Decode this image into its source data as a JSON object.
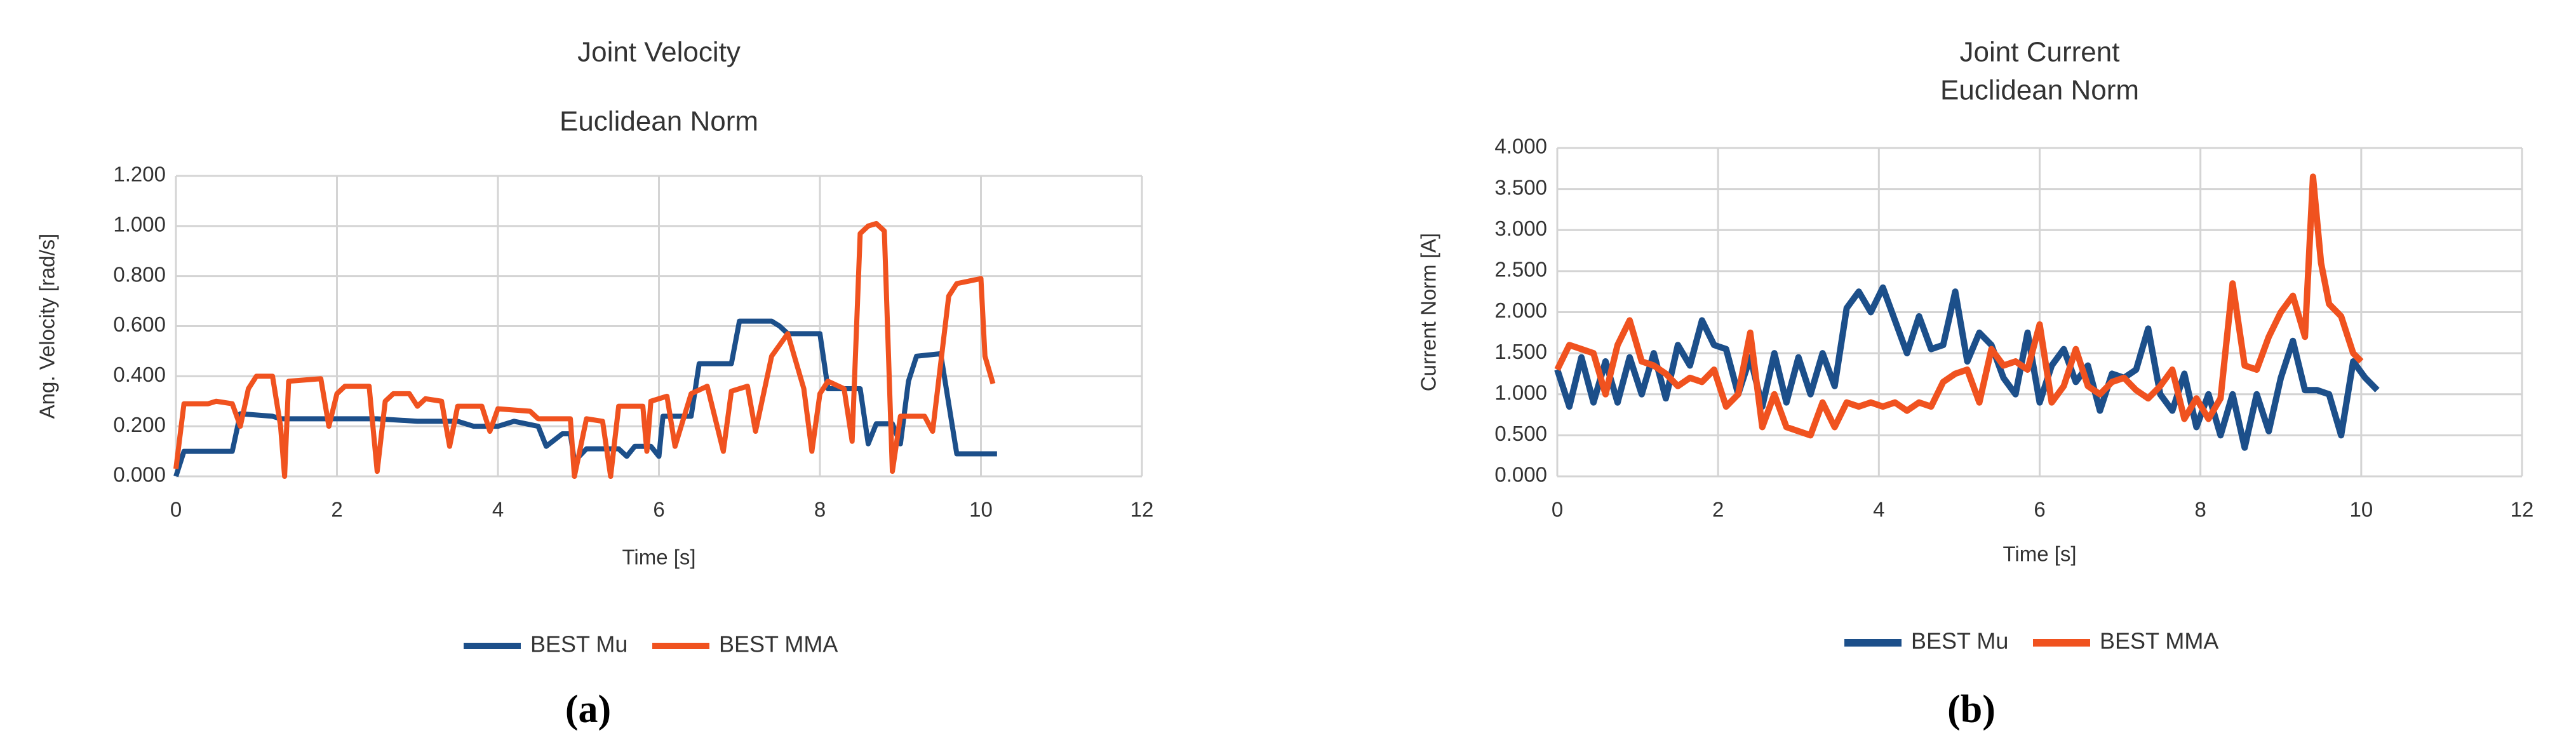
{
  "chart_data": [
    {
      "type": "line",
      "title": "Joint Velocity",
      "subtitle": "Euclidean Norm",
      "xlabel": "Time [s]",
      "ylabel": "Ang. Velocity [rad/s]",
      "panel_label": "(a)",
      "xlim": [
        0,
        12
      ],
      "xticks": [
        0,
        2,
        4,
        6,
        8,
        10,
        12
      ],
      "ylim": [
        0,
        1.2
      ],
      "yticks": [
        {
          "value": 0,
          "label": "0.000"
        },
        {
          "value": 0.2,
          "label": "0.200"
        },
        {
          "value": 0.4,
          "label": "0.400"
        },
        {
          "value": 0.6,
          "label": "0.600"
        },
        {
          "value": 0.8,
          "label": "0.800"
        },
        {
          "value": 1.0,
          "label": "1.000"
        },
        {
          "value": 1.2,
          "label": "1.200"
        }
      ],
      "grid": true,
      "legend": "bottom",
      "series": [
        {
          "name": "BEST Mu",
          "color": "#1c4f8a",
          "x": [
            0,
            0.1,
            0.7,
            0.8,
            1.2,
            1.3,
            2.5,
            3,
            3.5,
            3.7,
            4,
            4.2,
            4.5,
            4.6,
            4.8,
            4.9,
            4.95,
            5.1,
            5.5,
            5.6,
            5.7,
            5.9,
            6,
            6.05,
            6.4,
            6.5,
            6.9,
            7,
            7.4,
            7.5,
            7.6,
            8.0,
            8.1,
            8.5,
            8.6,
            8.7,
            8.9,
            9.0,
            9.1,
            9.2,
            9.5,
            9.7,
            10.2
          ],
          "values": [
            0,
            0.1,
            0.1,
            0.25,
            0.24,
            0.23,
            0.23,
            0.22,
            0.22,
            0.2,
            0.2,
            0.22,
            0.2,
            0.12,
            0.17,
            0.17,
            0.06,
            0.11,
            0.11,
            0.08,
            0.12,
            0.12,
            0.08,
            0.24,
            0.24,
            0.45,
            0.45,
            0.62,
            0.62,
            0.6,
            0.57,
            0.57,
            0.35,
            0.35,
            0.13,
            0.21,
            0.21,
            0.13,
            0.38,
            0.48,
            0.49,
            0.09,
            0.09
          ]
        },
        {
          "name": "BEST MMA",
          "color": "#f0521f",
          "x": [
            0,
            0.1,
            0.4,
            0.5,
            0.7,
            0.8,
            0.9,
            1.0,
            1.2,
            1.3,
            1.35,
            1.4,
            1.8,
            1.9,
            2,
            2.1,
            2.4,
            2.5,
            2.6,
            2.7,
            2.9,
            3.0,
            3.1,
            3.3,
            3.4,
            3.5,
            3.8,
            3.9,
            4,
            4.4,
            4.5,
            4.9,
            4.95,
            5.1,
            5.3,
            5.4,
            5.5,
            5.8,
            5.85,
            5.9,
            6.1,
            6.2,
            6.4,
            6.6,
            6.8,
            6.9,
            7.1,
            7.2,
            7.4,
            7.6,
            7.8,
            7.9,
            8.0,
            8.1,
            8.3,
            8.4,
            8.5,
            8.6,
            8.7,
            8.8,
            8.9,
            9.0,
            9.3,
            9.4,
            9.6,
            9.7,
            10.0,
            10.05,
            10.15
          ],
          "values": [
            0.03,
            0.29,
            0.29,
            0.3,
            0.29,
            0.2,
            0.35,
            0.4,
            0.4,
            0.2,
            0.0,
            0.38,
            0.39,
            0.2,
            0.33,
            0.36,
            0.36,
            0.02,
            0.3,
            0.33,
            0.33,
            0.28,
            0.31,
            0.3,
            0.12,
            0.28,
            0.28,
            0.18,
            0.27,
            0.26,
            0.23,
            0.23,
            0.0,
            0.23,
            0.22,
            0.0,
            0.28,
            0.28,
            0.1,
            0.3,
            0.32,
            0.12,
            0.33,
            0.36,
            0.1,
            0.34,
            0.36,
            0.18,
            0.48,
            0.57,
            0.35,
            0.1,
            0.33,
            0.38,
            0.35,
            0.14,
            0.97,
            1.0,
            1.01,
            0.98,
            0.02,
            0.24,
            0.24,
            0.18,
            0.72,
            0.77,
            0.79,
            0.48,
            0.37
          ]
        }
      ]
    },
    {
      "type": "line",
      "title": "Joint Current",
      "subtitle": "Euclidean Norm",
      "xlabel": "Time [s]",
      "ylabel": "Current Norm [A]",
      "panel_label": "(b)",
      "xlim": [
        0,
        12
      ],
      "xticks": [
        0,
        2,
        4,
        6,
        8,
        10,
        12
      ],
      "ylim": [
        0,
        4
      ],
      "yticks": [
        {
          "value": 0,
          "label": "0.000"
        },
        {
          "value": 0.5,
          "label": "0.500"
        },
        {
          "value": 1.0,
          "label": "1.000"
        },
        {
          "value": 1.5,
          "label": "1.500"
        },
        {
          "value": 2.0,
          "label": "2.000"
        },
        {
          "value": 2.5,
          "label": "2.500"
        },
        {
          "value": 3.0,
          "label": "3.000"
        },
        {
          "value": 3.5,
          "label": "3.500"
        },
        {
          "value": 4.0,
          "label": "4.000"
        }
      ],
      "grid": true,
      "legend": "bottom",
      "series": [
        {
          "name": "BEST Mu",
          "color": "#1c4f8a",
          "x": [
            0,
            0.15,
            0.3,
            0.45,
            0.6,
            0.75,
            0.9,
            1.05,
            1.2,
            1.35,
            1.5,
            1.65,
            1.8,
            1.95,
            2.1,
            2.25,
            2.4,
            2.55,
            2.7,
            2.85,
            3.0,
            3.15,
            3.3,
            3.45,
            3.6,
            3.75,
            3.9,
            4.05,
            4.2,
            4.35,
            4.5,
            4.65,
            4.8,
            4.95,
            5.1,
            5.25,
            5.4,
            5.55,
            5.7,
            5.85,
            6.0,
            6.15,
            6.3,
            6.45,
            6.6,
            6.75,
            6.9,
            7.05,
            7.2,
            7.35,
            7.5,
            7.65,
            7.8,
            7.95,
            8.1,
            8.25,
            8.4,
            8.55,
            8.7,
            8.85,
            9.0,
            9.15,
            9.3,
            9.45,
            9.6,
            9.75,
            9.9,
            10.05,
            10.2
          ],
          "values": [
            1.3,
            0.85,
            1.45,
            0.9,
            1.4,
            0.9,
            1.45,
            1.0,
            1.5,
            0.95,
            1.6,
            1.35,
            1.9,
            1.6,
            1.55,
            1.0,
            1.45,
            0.85,
            1.5,
            0.9,
            1.45,
            1.0,
            1.5,
            1.1,
            2.05,
            2.25,
            2.0,
            2.3,
            1.9,
            1.5,
            1.95,
            1.55,
            1.6,
            2.25,
            1.4,
            1.75,
            1.6,
            1.2,
            1.0,
            1.75,
            0.9,
            1.35,
            1.55,
            1.15,
            1.35,
            0.8,
            1.25,
            1.2,
            1.3,
            1.8,
            1.0,
            0.8,
            1.25,
            0.6,
            1.0,
            0.5,
            1.0,
            0.35,
            1.0,
            0.55,
            1.2,
            1.65,
            1.05,
            1.05,
            1.0,
            0.5,
            1.4,
            1.2,
            1.05
          ]
        },
        {
          "name": "BEST MMA",
          "color": "#f0521f",
          "x": [
            0,
            0.15,
            0.3,
            0.45,
            0.6,
            0.75,
            0.9,
            1.05,
            1.2,
            1.35,
            1.5,
            1.65,
            1.8,
            1.95,
            2.1,
            2.25,
            2.4,
            2.55,
            2.7,
            2.85,
            3.0,
            3.15,
            3.3,
            3.45,
            3.6,
            3.75,
            3.9,
            4.05,
            4.2,
            4.35,
            4.5,
            4.65,
            4.8,
            4.95,
            5.1,
            5.25,
            5.4,
            5.55,
            5.7,
            5.85,
            6.0,
            6.15,
            6.3,
            6.45,
            6.6,
            6.75,
            6.9,
            7.05,
            7.2,
            7.35,
            7.5,
            7.65,
            7.8,
            7.95,
            8.1,
            8.25,
            8.4,
            8.55,
            8.7,
            8.85,
            9.0,
            9.15,
            9.3,
            9.4,
            9.5,
            9.6,
            9.75,
            9.9,
            10.0
          ],
          "values": [
            1.3,
            1.6,
            1.55,
            1.5,
            1.0,
            1.6,
            1.9,
            1.4,
            1.35,
            1.25,
            1.1,
            1.2,
            1.15,
            1.3,
            0.85,
            1.0,
            1.75,
            0.6,
            1.0,
            0.6,
            0.55,
            0.5,
            0.9,
            0.6,
            0.9,
            0.85,
            0.9,
            0.85,
            0.9,
            0.8,
            0.9,
            0.85,
            1.15,
            1.25,
            1.3,
            0.9,
            1.55,
            1.35,
            1.4,
            1.3,
            1.85,
            0.9,
            1.1,
            1.55,
            1.1,
            1.0,
            1.15,
            1.2,
            1.05,
            0.95,
            1.1,
            1.3,
            0.7,
            0.95,
            0.7,
            0.95,
            2.35,
            1.35,
            1.3,
            1.7,
            2.0,
            2.2,
            1.7,
            3.65,
            2.6,
            2.1,
            1.95,
            1.5,
            1.4
          ]
        }
      ]
    }
  ]
}
